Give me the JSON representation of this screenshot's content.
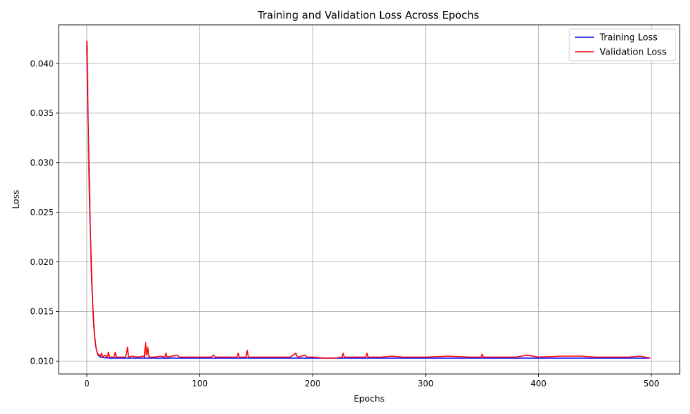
{
  "chart_data": {
    "type": "line",
    "title": "Training and Validation Loss Across Epochs",
    "xlabel": "Epochs",
    "ylabel": "Loss",
    "xlim": [
      -25,
      525
    ],
    "ylim": [
      0.0087,
      0.0439
    ],
    "xticks": [
      0,
      100,
      200,
      300,
      400,
      500
    ],
    "yticks": [
      0.01,
      0.015,
      0.02,
      0.025,
      0.03,
      0.035,
      0.04
    ],
    "xtick_labels": [
      "0",
      "100",
      "200",
      "300",
      "400",
      "500"
    ],
    "ytick_labels": [
      "0.010",
      "0.015",
      "0.020",
      "0.025",
      "0.030",
      "0.035",
      "0.040"
    ],
    "grid": true,
    "legend_position": "top-right",
    "series": [
      {
        "name": "Training Loss",
        "color": "#0000ff",
        "x": [
          0,
          1,
          2,
          3,
          4,
          5,
          6,
          7,
          8,
          9,
          10,
          12,
          15,
          20,
          30,
          50,
          100,
          200,
          300,
          400,
          499
        ],
        "y": [
          0.0418,
          0.0345,
          0.0283,
          0.0232,
          0.0191,
          0.016,
          0.0138,
          0.0123,
          0.0114,
          0.0109,
          0.0106,
          0.0104,
          0.01035,
          0.0103,
          0.0103,
          0.0103,
          0.0103,
          0.0103,
          0.0103,
          0.0103,
          0.0103
        ]
      },
      {
        "name": "Validation Loss",
        "color": "#ff0000",
        "x": [
          0,
          1,
          2,
          3,
          4,
          5,
          6,
          7,
          8,
          9,
          10,
          12,
          13,
          14,
          16,
          18,
          19,
          20,
          21,
          24,
          25,
          26,
          30,
          34,
          35,
          36,
          37,
          40,
          45,
          50,
          51,
          52,
          53,
          54,
          55,
          60,
          65,
          69,
          70,
          71,
          80,
          82,
          90,
          100,
          110,
          112,
          114,
          120,
          133,
          134,
          135,
          141,
          142,
          143,
          150,
          160,
          170,
          180,
          185,
          186,
          187,
          193,
          195,
          200,
          210,
          220,
          226,
          227,
          228,
          240,
          247,
          248,
          249,
          260,
          270,
          280,
          295,
          300,
          320,
          340,
          349,
          350,
          351,
          360,
          380,
          390,
          400,
          420,
          438,
          450,
          470,
          480,
          490,
          499
        ],
        "y": [
          0.0423,
          0.0355,
          0.029,
          0.0236,
          0.0194,
          0.0162,
          0.0139,
          0.0124,
          0.0114,
          0.0109,
          0.0107,
          0.0105,
          0.0108,
          0.0104,
          0.0106,
          0.0104,
          0.0109,
          0.0104,
          0.0104,
          0.0104,
          0.0109,
          0.0104,
          0.0104,
          0.0104,
          0.0107,
          0.0114,
          0.0104,
          0.0105,
          0.0104,
          0.0105,
          0.0104,
          0.0119,
          0.0106,
          0.0114,
          0.0104,
          0.0104,
          0.0105,
          0.0104,
          0.0108,
          0.0104,
          0.0106,
          0.0104,
          0.0104,
          0.0104,
          0.0104,
          0.0106,
          0.0104,
          0.0104,
          0.0104,
          0.0108,
          0.0104,
          0.0104,
          0.0111,
          0.0104,
          0.0104,
          0.0104,
          0.0104,
          0.0104,
          0.0108,
          0.0105,
          0.0104,
          0.0106,
          0.0104,
          0.0104,
          0.0103,
          0.0103,
          0.0104,
          0.0108,
          0.0104,
          0.0104,
          0.0104,
          0.0108,
          0.0104,
          0.0104,
          0.0105,
          0.0104,
          0.0104,
          0.0104,
          0.0105,
          0.0104,
          0.0104,
          0.0107,
          0.0104,
          0.0104,
          0.0104,
          0.0106,
          0.0104,
          0.0105,
          0.0105,
          0.0104,
          0.0104,
          0.0104,
          0.0105,
          0.0103
        ]
      }
    ]
  }
}
